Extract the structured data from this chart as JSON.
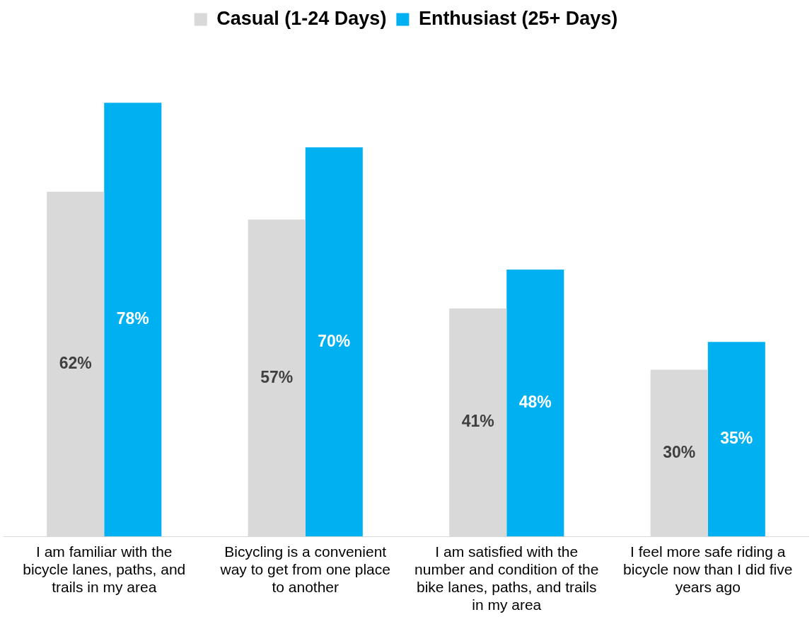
{
  "chart_data": {
    "type": "bar",
    "categories": [
      "I am familiar with the bicycle lanes, paths, and trails in my area",
      "Bicycling is a convenient way to get from one place to another",
      "I am satisfied with the number and condition of the bike lanes, paths, and trails in my area",
      "I feel more safe riding a bicycle now than I did five years ago"
    ],
    "series": [
      {
        "name": "Casual (1-24 Days)",
        "color": "#d9d9d9",
        "values": [
          62,
          57,
          41,
          30
        ],
        "value_labels": [
          "62%",
          "57%",
          "41%",
          "30%"
        ]
      },
      {
        "name": "Enthusiast (25+ Days)",
        "color": "#00b0f0",
        "values": [
          78,
          70,
          48,
          35
        ],
        "value_labels": [
          "78%",
          "70%",
          "48%",
          "35%"
        ]
      }
    ],
    "legend": "top",
    "grid": false
  }
}
